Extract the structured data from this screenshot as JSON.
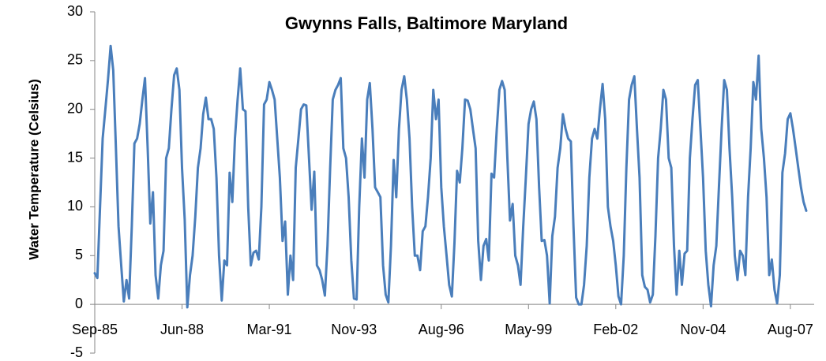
{
  "chart_data": {
    "type": "line",
    "title": "Gwynns Falls, Baltimore Maryland",
    "y_label": "Water Temperature (Celsius)",
    "x": [
      "1985-09",
      "1985-10",
      "1985-11",
      "1985-12",
      "1986-01",
      "1986-02",
      "1986-03",
      "1986-04",
      "1986-05",
      "1986-06",
      "1986-07",
      "1986-08",
      "1986-09",
      "1986-10",
      "1986-11",
      "1986-12",
      "1987-01",
      "1987-02",
      "1987-03",
      "1987-04",
      "1987-05",
      "1987-06",
      "1987-07",
      "1987-08",
      "1987-09",
      "1987-10",
      "1987-11",
      "1987-12",
      "1988-01",
      "1988-02",
      "1988-03",
      "1988-04",
      "1988-05",
      "1988-06",
      "1988-07",
      "1988-08",
      "1988-09",
      "1988-10",
      "1988-11",
      "1988-12",
      "1989-01",
      "1989-02",
      "1989-03",
      "1989-04",
      "1989-05",
      "1989-06",
      "1989-07",
      "1989-08",
      "1989-09",
      "1989-10",
      "1989-11",
      "1989-12",
      "1990-01",
      "1990-02",
      "1990-03",
      "1990-04",
      "1990-05",
      "1990-06",
      "1990-07",
      "1990-08",
      "1990-09",
      "1990-10",
      "1990-11",
      "1990-12",
      "1991-01",
      "1991-02",
      "1991-03",
      "1991-04",
      "1991-05",
      "1991-06",
      "1991-07",
      "1991-08",
      "1991-09",
      "1991-10",
      "1991-11",
      "1991-12",
      "1992-01",
      "1992-02",
      "1992-03",
      "1992-04",
      "1992-05",
      "1992-06",
      "1992-07",
      "1992-08",
      "1992-09",
      "1992-10",
      "1992-11",
      "1992-12",
      "1993-01",
      "1993-02",
      "1993-03",
      "1993-04",
      "1993-05",
      "1993-06",
      "1993-07",
      "1993-08",
      "1993-09",
      "1993-10",
      "1993-11",
      "1993-12",
      "1994-01",
      "1994-02",
      "1994-03",
      "1994-04",
      "1994-05",
      "1994-06",
      "1994-07",
      "1994-08",
      "1994-09",
      "1994-10",
      "1994-11",
      "1994-12",
      "1995-01",
      "1995-02",
      "1995-03",
      "1995-04",
      "1995-05",
      "1995-06",
      "1995-07",
      "1995-08",
      "1995-09",
      "1995-10",
      "1995-11",
      "1995-12",
      "1996-01",
      "1996-02",
      "1996-03",
      "1996-04",
      "1996-05",
      "1996-06",
      "1996-07",
      "1996-08",
      "1996-09",
      "1996-10",
      "1996-11",
      "1996-12",
      "1997-01",
      "1997-02",
      "1997-03",
      "1997-04",
      "1997-05",
      "1997-06",
      "1997-07",
      "1997-08",
      "1997-09",
      "1997-10",
      "1997-11",
      "1997-12",
      "1998-01",
      "1998-02",
      "1998-03",
      "1998-04",
      "1998-05",
      "1998-06",
      "1998-07",
      "1998-08",
      "1998-09",
      "1998-10",
      "1998-11",
      "1998-12",
      "1999-01",
      "1999-02",
      "1999-03",
      "1999-04",
      "1999-05",
      "1999-06",
      "1999-07",
      "1999-08",
      "1999-09",
      "1999-10",
      "1999-11",
      "1999-12",
      "2000-01",
      "2000-02",
      "2000-03",
      "2000-04",
      "2000-05",
      "2000-06",
      "2000-07",
      "2000-08",
      "2000-09",
      "2000-10",
      "2000-11",
      "2000-12",
      "2001-01",
      "2001-02",
      "2001-03",
      "2001-04",
      "2001-05",
      "2001-06",
      "2001-07",
      "2001-08",
      "2001-09",
      "2001-10",
      "2001-11",
      "2001-12",
      "2002-01",
      "2002-02",
      "2002-03",
      "2002-04",
      "2002-05",
      "2002-06",
      "2002-07",
      "2002-08",
      "2002-09",
      "2002-10",
      "2002-11",
      "2002-12",
      "2003-01",
      "2003-02",
      "2003-03",
      "2003-04",
      "2003-05",
      "2003-06",
      "2003-07",
      "2003-08",
      "2003-09",
      "2003-10",
      "2003-11",
      "2003-12",
      "2004-01",
      "2004-02",
      "2004-03",
      "2004-04",
      "2004-05",
      "2004-06",
      "2004-07",
      "2004-08",
      "2004-09",
      "2004-10",
      "2004-11",
      "2004-12",
      "2005-01",
      "2005-02",
      "2005-03",
      "2005-04",
      "2005-05",
      "2005-06",
      "2005-07",
      "2005-08",
      "2005-09",
      "2005-10",
      "2005-11",
      "2005-12",
      "2006-01",
      "2006-02",
      "2006-03",
      "2006-04",
      "2006-05",
      "2006-06",
      "2006-07",
      "2006-08",
      "2006-09",
      "2006-10",
      "2006-11",
      "2006-12",
      "2007-01",
      "2007-02",
      "2007-03",
      "2007-04",
      "2007-05",
      "2007-06",
      "2007-07",
      "2007-08",
      "2007-09",
      "2007-10",
      "2007-11",
      "2007-12",
      "2008-01",
      "2008-02"
    ],
    "series": [
      {
        "color": "#4a7ebb",
        "values": [
          3.2,
          2.7,
          10,
          17,
          20,
          23,
          26.5,
          24,
          16,
          8,
          4,
          0.3,
          2.5,
          0.6,
          8,
          16.5,
          17,
          18.5,
          21,
          23.2,
          16,
          8.3,
          11.5,
          3,
          0.6,
          4,
          5.5,
          15,
          16,
          20,
          23.5,
          24.2,
          22,
          14,
          8.7,
          -0.3,
          3,
          5,
          9,
          14,
          16,
          19.5,
          21.2,
          19,
          19,
          18,
          13,
          5,
          0.4,
          4.5,
          4,
          13.5,
          10.5,
          17,
          21,
          24.2,
          20,
          19.8,
          10,
          4,
          5.3,
          5.5,
          4.6,
          10,
          20.5,
          21,
          22.8,
          22,
          21,
          17,
          13,
          6.5,
          8.5,
          1,
          5,
          2.5,
          14,
          17,
          20,
          20.5,
          20.4,
          15,
          9.7,
          13.6,
          4,
          3.5,
          2.5,
          0.9,
          6,
          14,
          21,
          22,
          22.5,
          23.2,
          16,
          15,
          11,
          4.5,
          0.6,
          0.5,
          10,
          17,
          13,
          21,
          22.7,
          18,
          12,
          11.5,
          11,
          4,
          1,
          0.2,
          6,
          14.8,
          11,
          18,
          22,
          23.4,
          21,
          17,
          10,
          5,
          5,
          3.5,
          7.5,
          8,
          11,
          15,
          22,
          19,
          21,
          12,
          8,
          5,
          2,
          0.8,
          6.3,
          13.7,
          12.5,
          16,
          21,
          20.9,
          20,
          18,
          16,
          6.5,
          2.5,
          6,
          6.7,
          4.5,
          13.4,
          13,
          18,
          22,
          22.9,
          22,
          15,
          8.6,
          10.3,
          5,
          4,
          2,
          8,
          13,
          18.5,
          20,
          20.8,
          19,
          12,
          6.5,
          6.6,
          5,
          0.1,
          7,
          9,
          14,
          16,
          19.5,
          18,
          17,
          16.7,
          8,
          0.7,
          0,
          0,
          2,
          6,
          13,
          17,
          18,
          17,
          20,
          22.6,
          19,
          10,
          8,
          6.5,
          4,
          0.8,
          0,
          5,
          14,
          21,
          22.5,
          23.4,
          18,
          13,
          3,
          1.8,
          1.5,
          0.2,
          1,
          7,
          15,
          18,
          22,
          21,
          15,
          14,
          6,
          1,
          5.5,
          2,
          5.2,
          5.5,
          15,
          19,
          22.5,
          23,
          18,
          13,
          5.5,
          2,
          -0.2,
          4,
          6,
          12,
          18,
          23,
          22,
          16,
          11,
          5,
          2.5,
          5.5,
          5,
          3,
          11,
          16,
          22.8,
          21,
          25.5,
          18,
          15,
          11,
          3,
          4.6,
          1.5,
          0.1,
          3,
          13.5,
          15.5,
          19,
          19.6,
          18,
          16,
          14,
          12,
          10.5,
          9.6
        ]
      }
    ],
    "xlim": [
      "1985-09",
      "2008-05"
    ],
    "xticks": [
      {
        "value": "1985-09",
        "label": "Sep-85"
      },
      {
        "value": "1988-06",
        "label": "Jun-88"
      },
      {
        "value": "1991-03",
        "label": "Mar-91"
      },
      {
        "value": "1993-11",
        "label": "Nov-93"
      },
      {
        "value": "1996-08",
        "label": "Aug-96"
      },
      {
        "value": "1999-05",
        "label": "May-99"
      },
      {
        "value": "2002-02",
        "label": "Feb-02"
      },
      {
        "value": "2004-11",
        "label": "Nov-04"
      },
      {
        "value": "2007-08",
        "label": "Aug-07"
      }
    ],
    "ylim": [
      -5,
      30
    ],
    "yticks": [
      -5,
      0,
      5,
      10,
      15,
      20,
      25,
      30
    ],
    "grid": false
  }
}
